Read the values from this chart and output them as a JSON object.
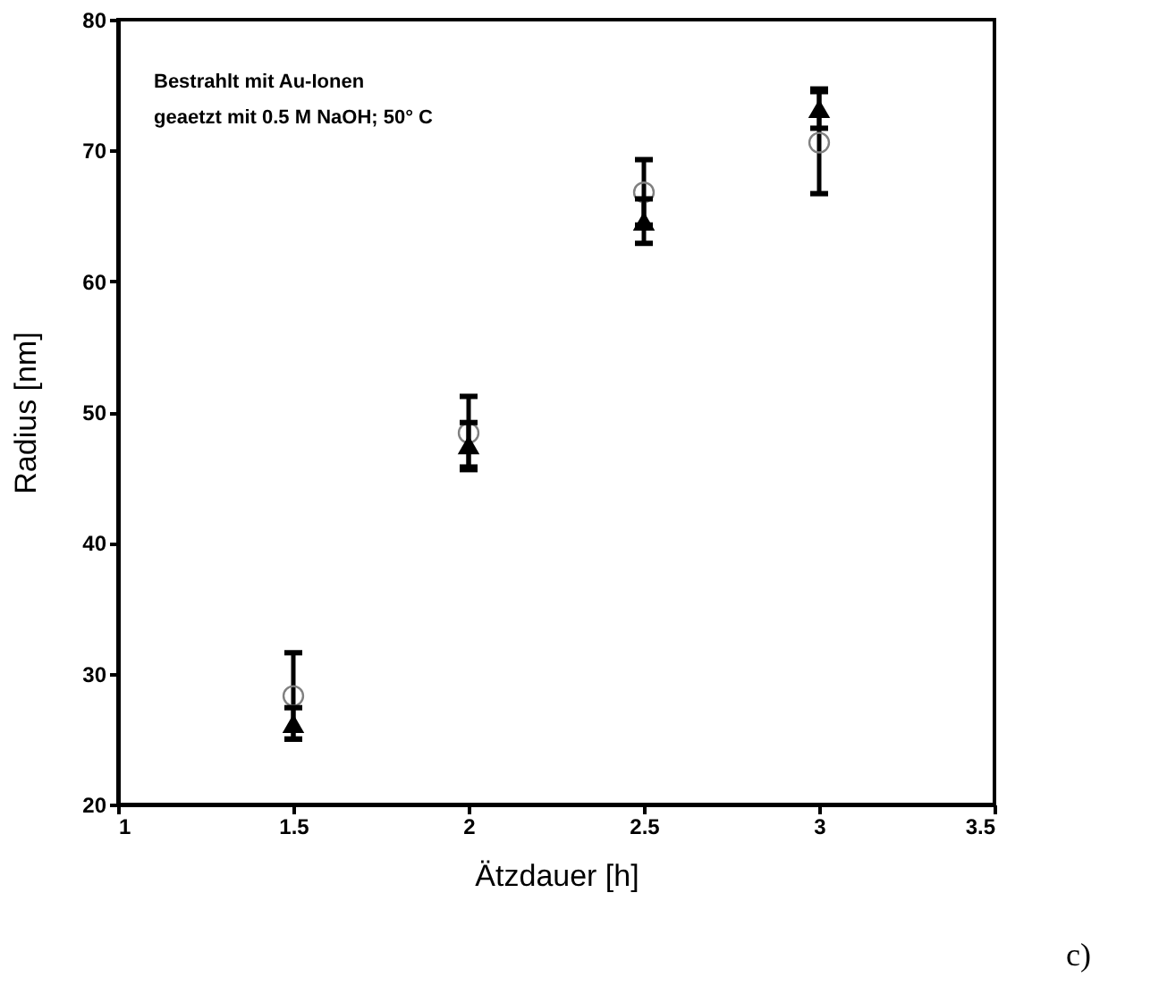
{
  "chart_data": {
    "type": "scatter",
    "xlabel": "Ätzdauer [h]",
    "ylabel": "Radius [nm]",
    "x": [
      1.5,
      2.0,
      2.5,
      3.0
    ],
    "series": [
      {
        "color": "#808080",
        "marker": "circle",
        "values": [
          28.3,
          48.4,
          66.8,
          70.6
        ],
        "errors": [
          3.3,
          2.8,
          2.5,
          3.9
        ]
      },
      {
        "color": "#000000",
        "marker": "triangle",
        "values": [
          26.2,
          47.5,
          64.6,
          73.2
        ],
        "errors": [
          1.2,
          1.7,
          1.7,
          1.5
        ]
      }
    ],
    "xlim": [
      1,
      3.5
    ],
    "xticks": [
      1,
      1.5,
      2,
      2.5,
      3,
      3.5
    ],
    "ylim": [
      20,
      80
    ],
    "yticks": [
      20,
      30,
      40,
      50,
      60,
      70,
      80
    ],
    "grid": false,
    "legend": false,
    "annotations": [
      "Bestrahlt mit Au-Ionen",
      "geaetzt mit 0.5 M NaOH; 50° C",
      "c)"
    ]
  }
}
